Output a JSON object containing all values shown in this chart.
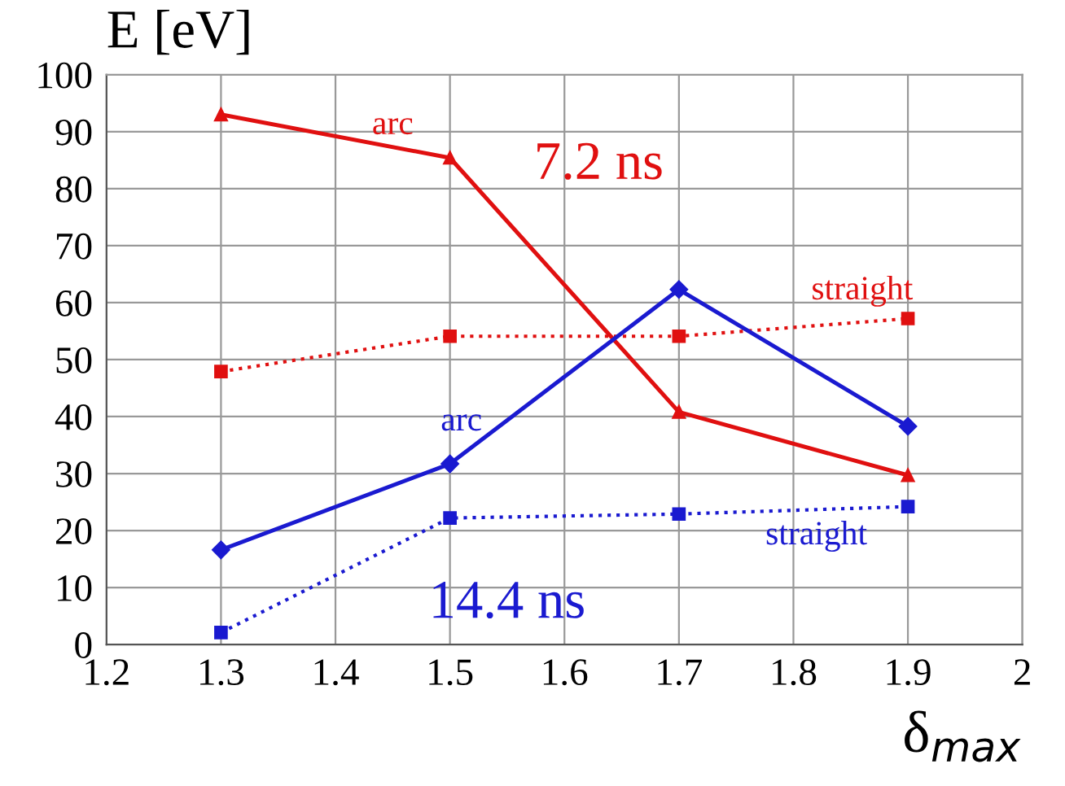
{
  "chart_data": {
    "type": "line",
    "ylabel": "E [eV]",
    "xlabel": "δ$_{max}$",
    "x": [
      1.3,
      1.5,
      1.7,
      1.9
    ],
    "series": [
      {
        "name": "arc",
        "color": "#e01010",
        "values": [
          93,
          85.4,
          40.8,
          29.7
        ],
        "marker": "triangle",
        "line_style": "solid"
      },
      {
        "name": "straight",
        "color": "#e01010",
        "values": [
          47.9,
          54.1,
          54.1,
          57.2
        ],
        "marker": "square",
        "line_style": "dotted"
      },
      {
        "name": "arc",
        "color": "#1a1ad0",
        "values": [
          16.6,
          31.7,
          62.3,
          38.3
        ],
        "marker": "diamond",
        "line_style": "solid"
      },
      {
        "name": "straight",
        "color": "#1a1ad0",
        "values": [
          2.1,
          22.2,
          22.9,
          24.2
        ],
        "marker": "square",
        "line_style": "dotted"
      }
    ],
    "annotations": [
      "7.2 ns",
      "14.4 ns"
    ],
    "xlim": [
      1.2,
      2.0
    ],
    "xticks": [
      1.2,
      1.3,
      1.4,
      1.5,
      1.6,
      1.7,
      1.8,
      1.9,
      {
        "value": 2.0,
        "label": "2"
      }
    ],
    "ylim": [
      0,
      100
    ],
    "yticks": [
      0,
      10,
      20,
      30,
      40,
      50,
      60,
      70,
      80,
      90,
      100
    ],
    "grid": true,
    "legend": false
  }
}
